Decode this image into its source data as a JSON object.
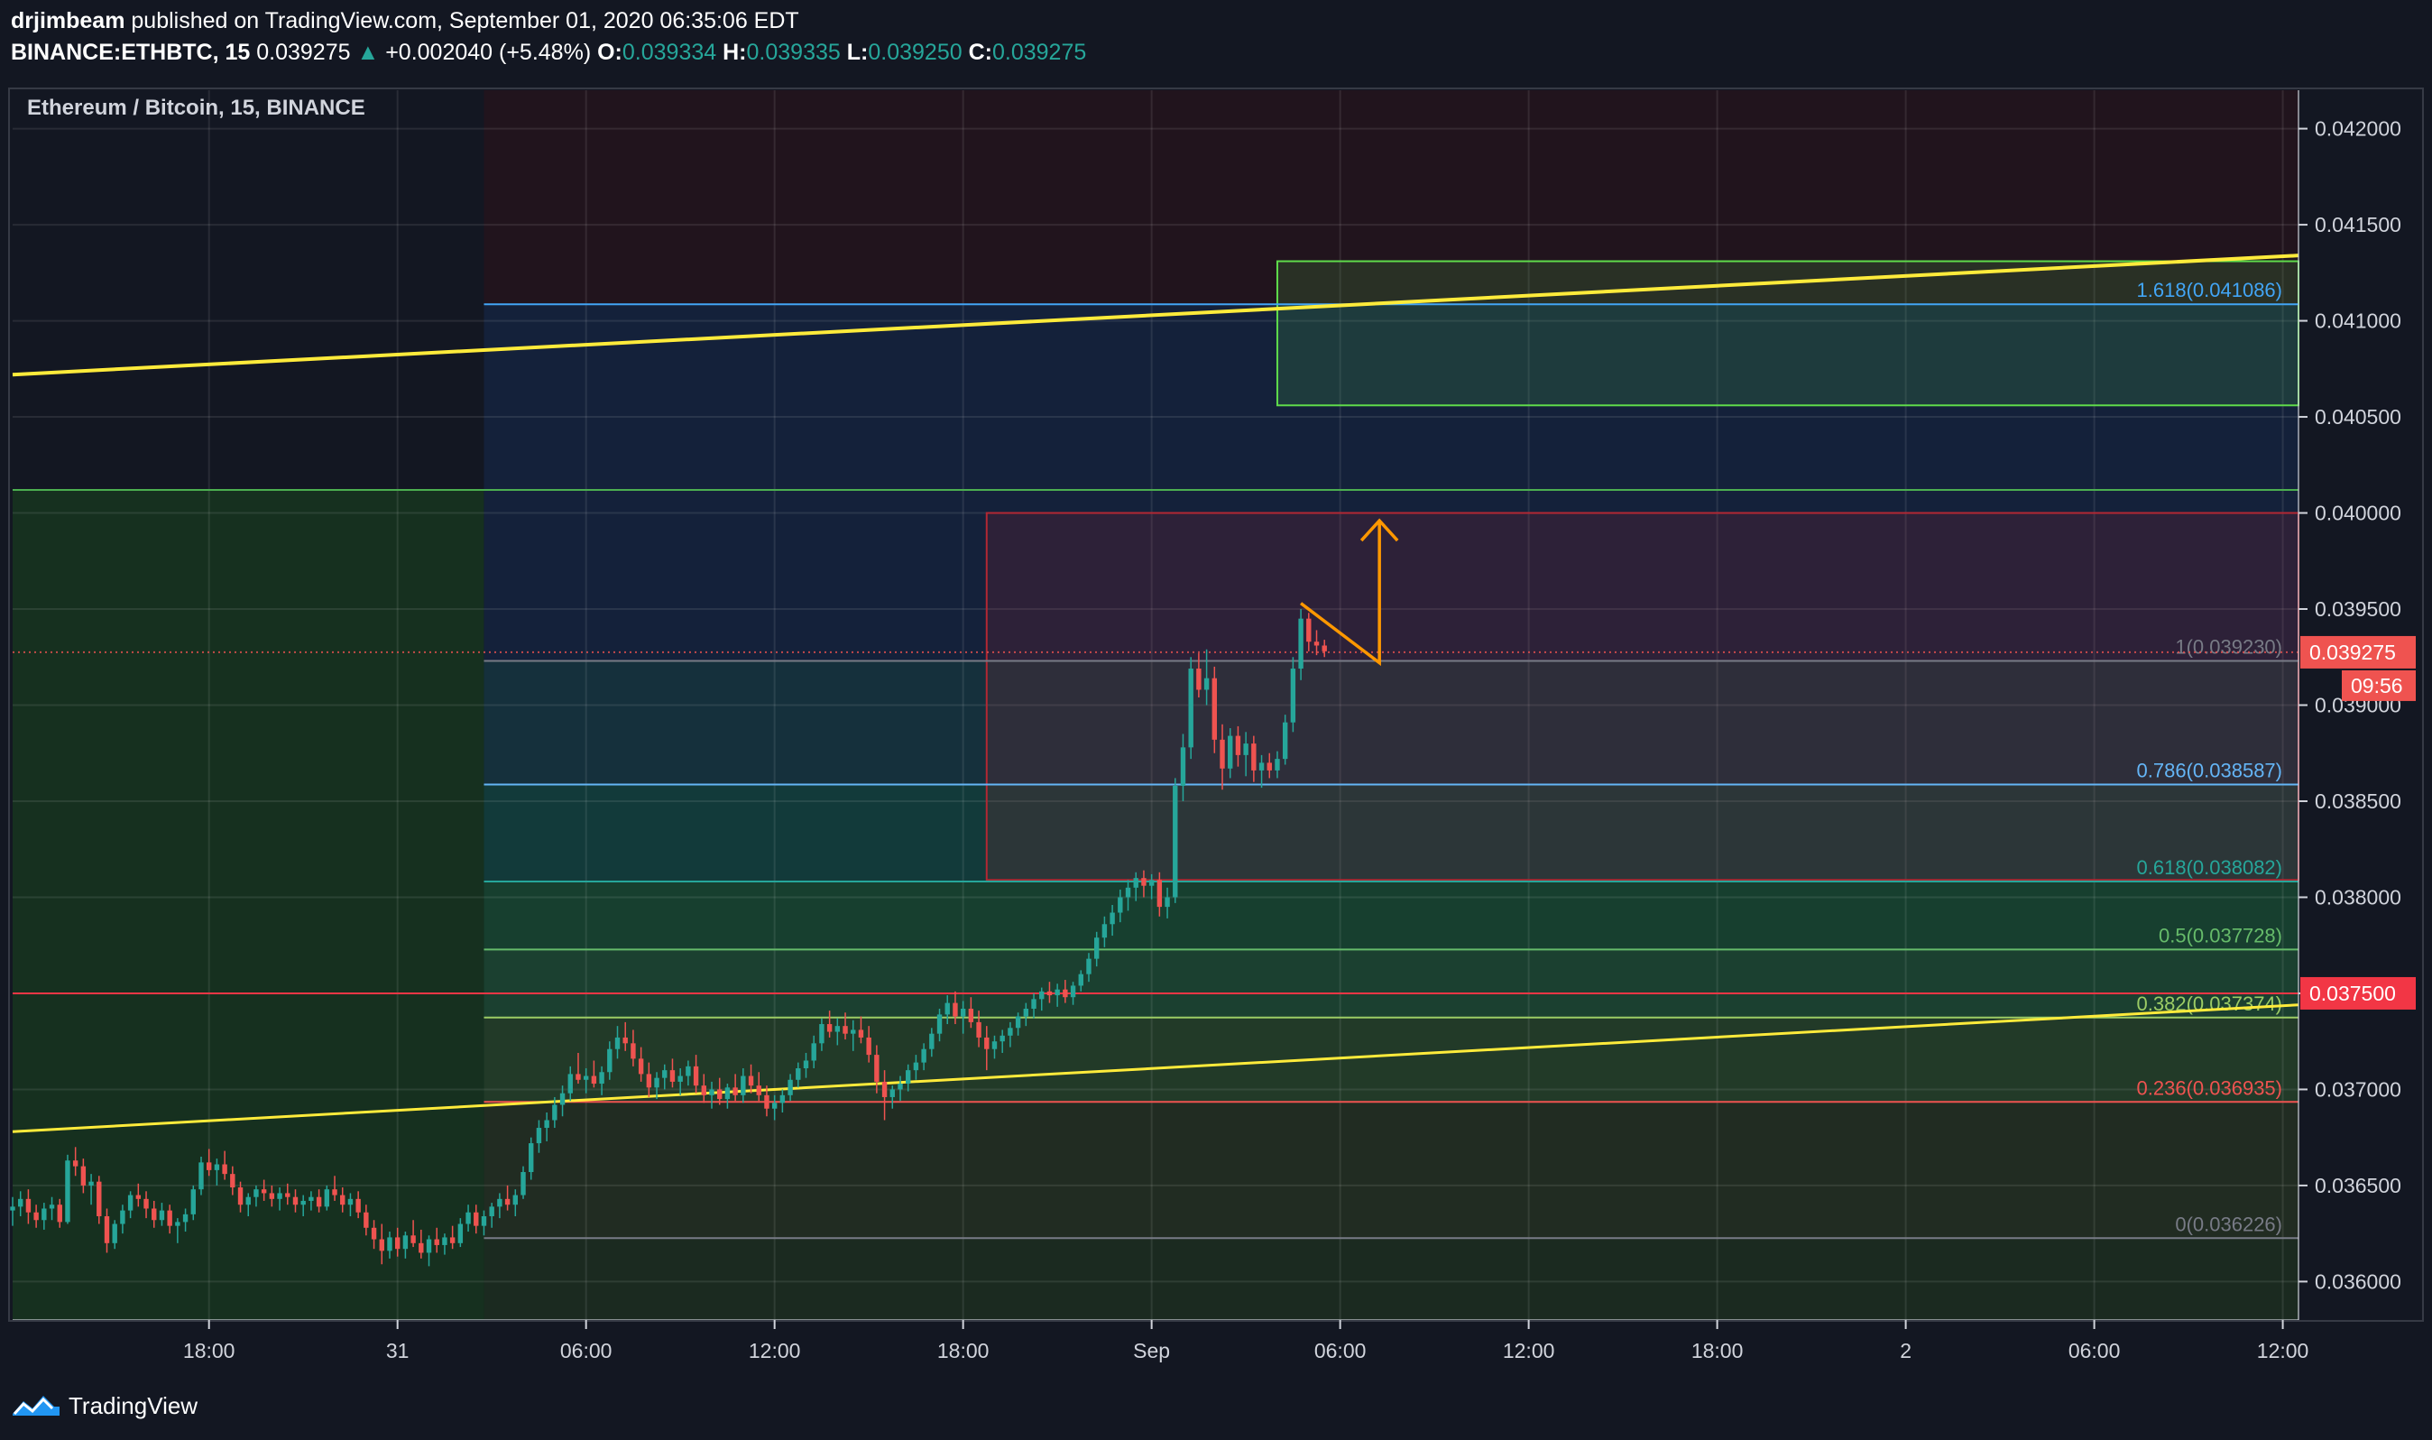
{
  "header": {
    "author": "drjimbeam",
    "published": "published on TradingView.com, September 01, 2020 06:35:06 EDT",
    "symbol": "BINANCE:ETHBTC, 15",
    "last": "0.039275",
    "change_arrow": "▲",
    "change": "+0.002040 (+5.48%)",
    "o_label": "O:",
    "o_value": "0.039334",
    "h_label": "H:",
    "h_value": "0.039335",
    "l_label": "L:",
    "l_value": "0.039250",
    "c_label": "C:",
    "c_value": "0.039275"
  },
  "footer": {
    "brand": "TradingView",
    "logo_icon": "tradingview-logo-icon"
  },
  "colors": {
    "background": "#131722",
    "up": "#26a69a",
    "down": "#ef5350",
    "fib_line": "#758696",
    "trend_yellow": "#ffeb3b",
    "target_box": "#4caf50",
    "resistance_box": "#b22833",
    "arrow": "#ff9800"
  },
  "chart_data": {
    "type": "candlestick",
    "title": "Ethereum / Bitcoin, 15, BINANCE",
    "ylim": [
      0.0358,
      0.0422
    ],
    "y_ticks": [
      "0.042000",
      "0.041500",
      "0.041000",
      "0.040500",
      "0.040000",
      "0.039500",
      "0.039000",
      "0.038500",
      "0.038000",
      "0.037500",
      "0.037000",
      "0.036500",
      "0.036000"
    ],
    "x_ticks": [
      {
        "label": "18:00",
        "bar": 25
      },
      {
        "label": "31",
        "bar": 49
      },
      {
        "label": "06:00",
        "bar": 73
      },
      {
        "label": "12:00",
        "bar": 97
      },
      {
        "label": "18:00",
        "bar": 121
      },
      {
        "label": "Sep",
        "bar": 145
      },
      {
        "label": "06:00",
        "bar": 169
      },
      {
        "label": "12:00",
        "bar": 193
      },
      {
        "label": "18:00",
        "bar": 217
      },
      {
        "label": "2",
        "bar": 241
      },
      {
        "label": "06:00",
        "bar": 265
      },
      {
        "label": "12:00",
        "bar": 289
      }
    ],
    "bar_span": [
      0,
      291
    ],
    "last_price": 0.039275,
    "last_price_label": "0.039275",
    "countdown_label": "09:56",
    "horizontal_level": 0.0375,
    "horizontal_level_label": "0.037500",
    "green_level": 0.04012,
    "fib_start_bar": 60,
    "fib_levels": [
      {
        "label": "1.618(0.041086)",
        "value": 0.041086,
        "color": "#42a5f5"
      },
      {
        "label": "1(0.039230)",
        "value": 0.03923,
        "color": "#787b86"
      },
      {
        "label": "0.786(0.038587)",
        "value": 0.038587,
        "color": "#64b5f6"
      },
      {
        "label": "0.618(0.038082)",
        "value": 0.038082,
        "color": "#26a69a"
      },
      {
        "label": "0.5(0.037728)",
        "value": 0.037728,
        "color": "#66bb6a"
      },
      {
        "label": "0.382(0.037374)",
        "value": 0.037374,
        "color": "#9ccc65"
      },
      {
        "label": "0.236(0.036935)",
        "value": 0.036935,
        "color": "#ef5350"
      },
      {
        "label": "0(0.036226)",
        "value": 0.036226,
        "color": "#787b86"
      }
    ],
    "trendlines": [
      {
        "from": [
          0,
          0.04072
        ],
        "to": [
          291,
          0.04134
        ]
      },
      {
        "from": [
          0,
          0.03678
        ],
        "to": [
          291,
          0.03744
        ]
      }
    ],
    "target_box": {
      "bar_from": 161,
      "bar_to": 291,
      "top": 0.04131,
      "bottom": 0.04056
    },
    "resistance_box": {
      "bar_from": 124,
      "bar_to": 291,
      "top": 0.04,
      "bottom": 0.03809
    },
    "projection_arrow": [
      [
        164,
        0.03953
      ],
      [
        174,
        0.03922
      ],
      [
        174,
        0.03996
      ]
    ],
    "candles": [
      [
        0,
        0.03637,
        0.03644,
        0.03629,
        0.03639
      ],
      [
        1,
        0.03639,
        0.03647,
        0.03634,
        0.03643
      ],
      [
        2,
        0.03643,
        0.03648,
        0.0363,
        0.03636
      ],
      [
        3,
        0.03636,
        0.0364,
        0.03628,
        0.03632
      ],
      [
        4,
        0.03632,
        0.03641,
        0.03627,
        0.03638
      ],
      [
        5,
        0.03638,
        0.03644,
        0.03632,
        0.0364
      ],
      [
        6,
        0.0364,
        0.03643,
        0.03628,
        0.03631
      ],
      [
        7,
        0.03631,
        0.03666,
        0.0363,
        0.03663
      ],
      [
        8,
        0.03663,
        0.0367,
        0.03655,
        0.0366
      ],
      [
        9,
        0.0366,
        0.03664,
        0.03646,
        0.0365
      ],
      [
        10,
        0.0365,
        0.03656,
        0.0364,
        0.03652
      ],
      [
        11,
        0.03652,
        0.03655,
        0.0363,
        0.03634
      ],
      [
        12,
        0.03634,
        0.03638,
        0.03615,
        0.0362
      ],
      [
        13,
        0.0362,
        0.03632,
        0.03617,
        0.0363
      ],
      [
        14,
        0.0363,
        0.0364,
        0.03625,
        0.03637
      ],
      [
        15,
        0.03637,
        0.03647,
        0.03633,
        0.03645
      ],
      [
        16,
        0.03645,
        0.03651,
        0.03639,
        0.03643
      ],
      [
        17,
        0.03643,
        0.03647,
        0.03633,
        0.03638
      ],
      [
        18,
        0.03638,
        0.03642,
        0.03628,
        0.03632
      ],
      [
        19,
        0.03632,
        0.03641,
        0.03629,
        0.03637
      ],
      [
        20,
        0.03637,
        0.0364,
        0.03625,
        0.03629
      ],
      [
        21,
        0.03629,
        0.03633,
        0.0362,
        0.03631
      ],
      [
        22,
        0.03631,
        0.03638,
        0.03626,
        0.03635
      ],
      [
        23,
        0.03635,
        0.0365,
        0.03632,
        0.03648
      ],
      [
        24,
        0.03648,
        0.03665,
        0.03645,
        0.03662
      ],
      [
        25,
        0.03662,
        0.03669,
        0.03655,
        0.03658
      ],
      [
        26,
        0.03658,
        0.03664,
        0.0365,
        0.03661
      ],
      [
        27,
        0.03661,
        0.03668,
        0.03653,
        0.03656
      ],
      [
        28,
        0.03656,
        0.0366,
        0.03645,
        0.03649
      ],
      [
        29,
        0.03649,
        0.03652,
        0.03636,
        0.0364
      ],
      [
        30,
        0.0364,
        0.03646,
        0.03634,
        0.03644
      ],
      [
        31,
        0.03644,
        0.0365,
        0.03639,
        0.03648
      ],
      [
        32,
        0.03648,
        0.03653,
        0.03642,
        0.03646
      ],
      [
        33,
        0.03646,
        0.0365,
        0.03639,
        0.03643
      ],
      [
        34,
        0.03643,
        0.03649,
        0.03637,
        0.03646
      ],
      [
        35,
        0.03646,
        0.03651,
        0.0364,
        0.03644
      ],
      [
        36,
        0.03644,
        0.03648,
        0.03636,
        0.0364
      ],
      [
        37,
        0.0364,
        0.03645,
        0.03634,
        0.03642
      ],
      [
        38,
        0.03642,
        0.03647,
        0.03637,
        0.03644
      ],
      [
        39,
        0.03644,
        0.03648,
        0.03636,
        0.03639
      ],
      [
        40,
        0.03639,
        0.0365,
        0.03637,
        0.03648
      ],
      [
        41,
        0.03648,
        0.03655,
        0.03642,
        0.03645
      ],
      [
        42,
        0.03645,
        0.03649,
        0.03636,
        0.0364
      ],
      [
        43,
        0.0364,
        0.03646,
        0.03634,
        0.03643
      ],
      [
        44,
        0.03643,
        0.03647,
        0.03633,
        0.03636
      ],
      [
        45,
        0.03636,
        0.0364,
        0.03624,
        0.03628
      ],
      [
        46,
        0.03628,
        0.03632,
        0.03617,
        0.03622
      ],
      [
        47,
        0.03622,
        0.0363,
        0.03609,
        0.03616
      ],
      [
        48,
        0.03616,
        0.03626,
        0.03612,
        0.03623
      ],
      [
        49,
        0.03623,
        0.03628,
        0.03613,
        0.03617
      ],
      [
        50,
        0.03617,
        0.03626,
        0.03612,
        0.03624
      ],
      [
        51,
        0.03624,
        0.03632,
        0.03618,
        0.0362
      ],
      [
        52,
        0.0362,
        0.03627,
        0.03612,
        0.03615
      ],
      [
        53,
        0.03615,
        0.03624,
        0.03608,
        0.03622
      ],
      [
        54,
        0.03622,
        0.03628,
        0.03615,
        0.03619
      ],
      [
        55,
        0.03619,
        0.03625,
        0.03614,
        0.03623
      ],
      [
        56,
        0.03623,
        0.03629,
        0.03617,
        0.0362
      ],
      [
        57,
        0.0362,
        0.03633,
        0.03618,
        0.0363
      ],
      [
        58,
        0.0363,
        0.0364,
        0.03626,
        0.03636
      ],
      [
        59,
        0.03636,
        0.0364,
        0.03625,
        0.03629
      ],
      [
        60,
        0.03629,
        0.03637,
        0.03624,
        0.03634
      ],
      [
        61,
        0.03634,
        0.03641,
        0.03628,
        0.03639
      ],
      [
        62,
        0.03639,
        0.03646,
        0.03633,
        0.03643
      ],
      [
        63,
        0.03643,
        0.0365,
        0.03637,
        0.0364
      ],
      [
        64,
        0.0364,
        0.03648,
        0.03634,
        0.03645
      ],
      [
        65,
        0.03645,
        0.0366,
        0.03643,
        0.03657
      ],
      [
        66,
        0.03657,
        0.03675,
        0.03653,
        0.03672
      ],
      [
        67,
        0.03672,
        0.03684,
        0.03667,
        0.0368
      ],
      [
        68,
        0.0368,
        0.03688,
        0.03673,
        0.03684
      ],
      [
        69,
        0.03684,
        0.03696,
        0.0368,
        0.03692
      ],
      [
        70,
        0.03692,
        0.03702,
        0.03686,
        0.03698
      ],
      [
        71,
        0.03698,
        0.03712,
        0.03694,
        0.03708
      ],
      [
        72,
        0.03708,
        0.03719,
        0.03703,
        0.03705
      ],
      [
        73,
        0.03705,
        0.03711,
        0.03698,
        0.03707
      ],
      [
        74,
        0.03707,
        0.03715,
        0.03701,
        0.03703
      ],
      [
        75,
        0.03703,
        0.03712,
        0.03697,
        0.03709
      ],
      [
        76,
        0.03709,
        0.03725,
        0.03705,
        0.03721
      ],
      [
        77,
        0.03721,
        0.03733,
        0.03716,
        0.03727
      ],
      [
        78,
        0.03727,
        0.03735,
        0.0372,
        0.03724
      ],
      [
        79,
        0.03724,
        0.03731,
        0.03712,
        0.03716
      ],
      [
        80,
        0.03716,
        0.03722,
        0.03704,
        0.03708
      ],
      [
        81,
        0.03708,
        0.03714,
        0.03696,
        0.03701
      ],
      [
        82,
        0.03701,
        0.03709,
        0.03695,
        0.03706
      ],
      [
        83,
        0.03706,
        0.03713,
        0.037,
        0.0371
      ],
      [
        84,
        0.0371,
        0.03716,
        0.03701,
        0.03704
      ],
      [
        85,
        0.03704,
        0.03711,
        0.03697,
        0.03707
      ],
      [
        86,
        0.03707,
        0.03715,
        0.03702,
        0.03712
      ],
      [
        87,
        0.03712,
        0.03718,
        0.03698,
        0.03702
      ],
      [
        88,
        0.03702,
        0.03708,
        0.03693,
        0.03697
      ],
      [
        89,
        0.03697,
        0.03704,
        0.0369,
        0.037
      ],
      [
        90,
        0.037,
        0.03706,
        0.03692,
        0.03695
      ],
      [
        91,
        0.03695,
        0.03703,
        0.0369,
        0.03701
      ],
      [
        92,
        0.03701,
        0.03708,
        0.03694,
        0.03697
      ],
      [
        93,
        0.03697,
        0.03711,
        0.03693,
        0.03707
      ],
      [
        94,
        0.03707,
        0.03713,
        0.03698,
        0.03702
      ],
      [
        95,
        0.03702,
        0.03709,
        0.03694,
        0.03697
      ],
      [
        96,
        0.03697,
        0.03702,
        0.03686,
        0.0369
      ],
      [
        97,
        0.0369,
        0.03697,
        0.03684,
        0.03693
      ],
      [
        98,
        0.03693,
        0.037,
        0.03688,
        0.03697
      ],
      [
        99,
        0.03697,
        0.03708,
        0.03694,
        0.03705
      ],
      [
        100,
        0.03705,
        0.03714,
        0.03701,
        0.03711
      ],
      [
        101,
        0.03711,
        0.03719,
        0.03706,
        0.03715
      ],
      [
        102,
        0.03715,
        0.03728,
        0.03711,
        0.03724
      ],
      [
        103,
        0.03724,
        0.03737,
        0.0372,
        0.03734
      ],
      [
        104,
        0.03734,
        0.03741,
        0.03727,
        0.0373
      ],
      [
        105,
        0.0373,
        0.03737,
        0.03723,
        0.03733
      ],
      [
        106,
        0.03733,
        0.0374,
        0.03726,
        0.03729
      ],
      [
        107,
        0.03729,
        0.03736,
        0.0372,
        0.03731
      ],
      [
        108,
        0.03731,
        0.03738,
        0.03724,
        0.03727
      ],
      [
        109,
        0.03727,
        0.03733,
        0.03714,
        0.03718
      ],
      [
        110,
        0.03718,
        0.03723,
        0.03698,
        0.03704
      ],
      [
        111,
        0.03704,
        0.0371,
        0.03684,
        0.03696
      ],
      [
        112,
        0.03696,
        0.03702,
        0.0369,
        0.037
      ],
      [
        113,
        0.037,
        0.03707,
        0.03694,
        0.03703
      ],
      [
        114,
        0.03703,
        0.03713,
        0.03699,
        0.0371
      ],
      [
        115,
        0.0371,
        0.03718,
        0.03705,
        0.03714
      ],
      [
        116,
        0.03714,
        0.03724,
        0.0371,
        0.03721
      ],
      [
        117,
        0.03721,
        0.03732,
        0.03717,
        0.03729
      ],
      [
        118,
        0.03729,
        0.03742,
        0.03725,
        0.03739
      ],
      [
        119,
        0.03739,
        0.03749,
        0.03734,
        0.03745
      ],
      [
        120,
        0.03745,
        0.03751,
        0.03734,
        0.03738
      ],
      [
        121,
        0.03738,
        0.03746,
        0.03729,
        0.03742
      ],
      [
        122,
        0.03742,
        0.03748,
        0.03732,
        0.03735
      ],
      [
        123,
        0.03735,
        0.03741,
        0.03722,
        0.03727
      ],
      [
        124,
        0.03727,
        0.03733,
        0.0371,
        0.03721
      ],
      [
        125,
        0.03721,
        0.03728,
        0.03716,
        0.03725
      ],
      [
        126,
        0.03725,
        0.03731,
        0.03719,
        0.03728
      ],
      [
        127,
        0.03728,
        0.03735,
        0.03722,
        0.03732
      ],
      [
        128,
        0.03732,
        0.0374,
        0.03728,
        0.03738
      ],
      [
        129,
        0.03738,
        0.03745,
        0.03733,
        0.03742
      ],
      [
        130,
        0.03742,
        0.0375,
        0.03737,
        0.03747
      ],
      [
        131,
        0.03747,
        0.03753,
        0.03741,
        0.03751
      ],
      [
        132,
        0.03751,
        0.03756,
        0.03745,
        0.03749
      ],
      [
        133,
        0.03749,
        0.03755,
        0.03743,
        0.03752
      ],
      [
        134,
        0.03752,
        0.03757,
        0.03745,
        0.03748
      ],
      [
        135,
        0.03748,
        0.03756,
        0.03744,
        0.03754
      ],
      [
        136,
        0.03754,
        0.03762,
        0.03751,
        0.0376
      ],
      [
        137,
        0.0376,
        0.03771,
        0.03756,
        0.03768
      ],
      [
        138,
        0.03768,
        0.03782,
        0.03764,
        0.03779
      ],
      [
        139,
        0.03779,
        0.0379,
        0.03774,
        0.03786
      ],
      [
        140,
        0.03786,
        0.03796,
        0.0378,
        0.03792
      ],
      [
        141,
        0.03792,
        0.03804,
        0.03787,
        0.038
      ],
      [
        142,
        0.038,
        0.03809,
        0.03793,
        0.03805
      ],
      [
        143,
        0.03805,
        0.03813,
        0.03798,
        0.0381
      ],
      [
        144,
        0.0381,
        0.03814,
        0.038,
        0.03806
      ],
      [
        145,
        0.03806,
        0.03812,
        0.03799,
        0.03809
      ],
      [
        146,
        0.03809,
        0.03813,
        0.0379,
        0.03795
      ],
      [
        147,
        0.03795,
        0.03805,
        0.03789,
        0.038
      ],
      [
        148,
        0.038,
        0.03862,
        0.03797,
        0.03858
      ],
      [
        149,
        0.03858,
        0.03885,
        0.0385,
        0.03878
      ],
      [
        150,
        0.03878,
        0.03925,
        0.03872,
        0.03919
      ],
      [
        151,
        0.03919,
        0.03927,
        0.03904,
        0.03908
      ],
      [
        152,
        0.03908,
        0.03929,
        0.039,
        0.03914
      ],
      [
        153,
        0.03914,
        0.0392,
        0.03875,
        0.03882
      ],
      [
        154,
        0.03882,
        0.0389,
        0.03856,
        0.03867
      ],
      [
        155,
        0.03867,
        0.03888,
        0.03862,
        0.03884
      ],
      [
        156,
        0.03884,
        0.03889,
        0.03868,
        0.03874
      ],
      [
        157,
        0.03874,
        0.03886,
        0.03863,
        0.0388
      ],
      [
        158,
        0.0388,
        0.03884,
        0.0386,
        0.03866
      ],
      [
        159,
        0.03866,
        0.03874,
        0.03857,
        0.0387
      ],
      [
        160,
        0.0387,
        0.03875,
        0.03862,
        0.03866
      ],
      [
        161,
        0.03866,
        0.03876,
        0.03862,
        0.03872
      ],
      [
        162,
        0.03872,
        0.03895,
        0.03869,
        0.03891
      ],
      [
        163,
        0.03891,
        0.03925,
        0.03886,
        0.03919
      ],
      [
        164,
        0.03919,
        0.0395,
        0.03913,
        0.03945
      ],
      [
        165,
        0.03945,
        0.03948,
        0.03928,
        0.03933
      ],
      [
        166,
        0.03933,
        0.03939,
        0.03926,
        0.03931
      ],
      [
        167,
        0.03931,
        0.03934,
        0.03925,
        0.03928
      ]
    ]
  }
}
